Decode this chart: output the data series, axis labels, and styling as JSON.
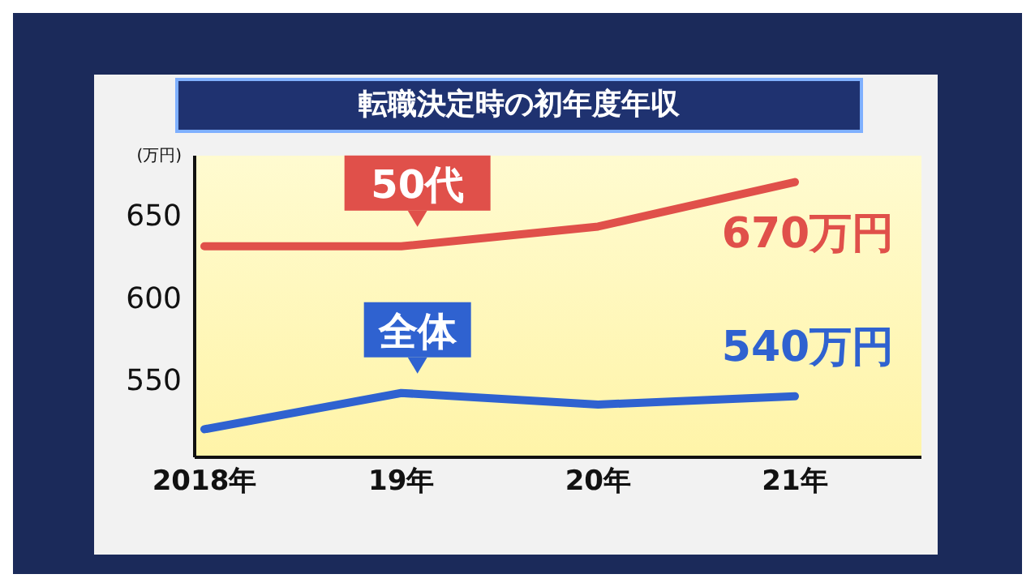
{
  "chart_data": {
    "type": "line",
    "title": "転職決定時の初年度年収",
    "ylabel": "(万円)",
    "categories": [
      "2018年",
      "19年",
      "20年",
      "21年"
    ],
    "series": [
      {
        "name": "50代",
        "color": "#e0504a",
        "values": [
          631,
          631,
          643,
          670
        ],
        "value_labels": [
          null,
          null,
          null,
          "670万円"
        ]
      },
      {
        "name": "全体",
        "color": "#2f62d0",
        "values": [
          520,
          542,
          535,
          540
        ],
        "value_labels": [
          null,
          null,
          null,
          "540万円"
        ]
      }
    ],
    "ylim": [
      503,
      686
    ],
    "yticks": [
      550,
      600,
      650
    ],
    "marker": "none",
    "line_style": "solid"
  }
}
